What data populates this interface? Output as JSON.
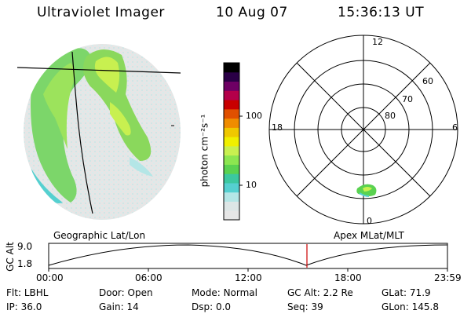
{
  "header": {
    "instrument": "Ultraviolet Imager",
    "date": "10 Aug 07",
    "time": "15:36:13 UT"
  },
  "colorbar": {
    "unit_label": "photon cm⁻²s⁻¹",
    "tick_100": "100",
    "tick_10": "10",
    "colors": [
      "#e6e6e6",
      "#dde6e6",
      "#b4e6e6",
      "#55d0d0",
      "#3cc8a0",
      "#5ad250",
      "#8ce650",
      "#c8f050",
      "#f0f000",
      "#f0c800",
      "#f08c00",
      "#e05000",
      "#c80000",
      "#b4004a",
      "#6e0064",
      "#2a0046",
      "#000000"
    ]
  },
  "polar": {
    "label_12": "12",
    "label_0": "0",
    "label_18": "18",
    "label_6": "6",
    "label_60": "60",
    "label_70": "70",
    "label_80": "80"
  },
  "panel_labels": {
    "geographic": "Geographic Lat/Lon",
    "apex": "Apex  MLat/MLT"
  },
  "orbit_plot": {
    "ylabel": "GC Alt",
    "y_top": "9.0",
    "y_bottom": "1.8",
    "x_ticks": [
      "00:00",
      "06:00",
      "12:00",
      "18:00",
      "23:59"
    ],
    "marker_color": "#cc0000"
  },
  "status": {
    "flt_label": "Flt:",
    "flt_value": "LBHL",
    "ip_label": "IP:",
    "ip_value": "36.0",
    "door_label": "Door:",
    "door_value": "Open",
    "gain_label": "Gain:",
    "gain_value": "14",
    "mode_label": "Mode:",
    "mode_value": "Normal",
    "dsp_label": "Dsp:",
    "dsp_value": "0.0",
    "gcalt_label": "GC Alt:",
    "gcalt_value": "2.2 Re",
    "seq_label": "Seq:",
    "seq_value": "39",
    "glat_label": "GLat:",
    "glat_value": "71.9",
    "glon_label": "GLon:",
    "glon_value": "145.8"
  }
}
